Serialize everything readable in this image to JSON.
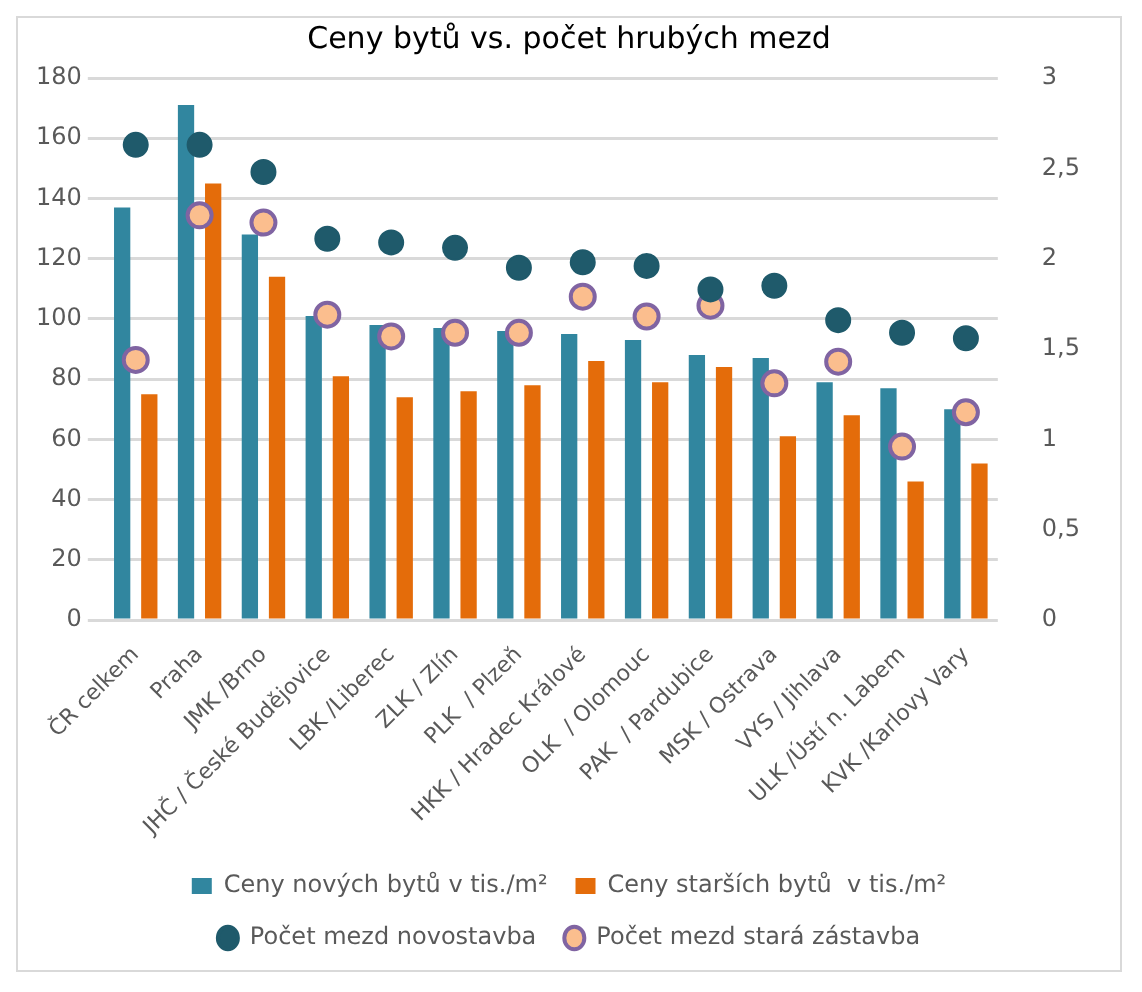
{
  "chart_data": {
    "type": "bar",
    "title": "Ceny bytů vs. počet hrubých mezd",
    "categories": [
      "ČR celkem",
      "Praha",
      "JMK /Brno",
      "JHČ / České Budějovice",
      "LBK /Liberec",
      "ZLK / Zlín",
      "PLK  / Plzeň",
      "HKK / Hradec Králové",
      "OLK  / Olomouc",
      "PAK  / Pardubice",
      "MSK / Ostrava",
      "VYS / Jihlava",
      "ULK /Ústí n. Labem",
      "KVK /Karlovy Vary"
    ],
    "series": [
      {
        "name": "Ceny nových bytů v tis./m²",
        "color": "#31869f",
        "values": [
          137,
          171,
          128,
          101,
          98,
          97,
          96,
          95,
          93,
          88,
          87,
          79,
          77,
          70
        ]
      },
      {
        "name": "Ceny starších bytů  v tis./m²",
        "color": "#e46c0a",
        "values": [
          75,
          145,
          114,
          81,
          74,
          76,
          78,
          86,
          79,
          84,
          61,
          68,
          46,
          52
        ]
      },
      {
        "name": "Počet mezd novostavba",
        "type": "scatter",
        "axis": "y2",
        "color": "#1f5a6b",
        "values": [
          2.63,
          2.63,
          2.48,
          2.11,
          2.09,
          2.06,
          1.95,
          1.98,
          1.96,
          1.83,
          1.85,
          1.66,
          1.59,
          1.56
        ]
      },
      {
        "name": "Počet mezd stará zástavba",
        "type": "scatter",
        "axis": "y2",
        "color": "#fbbe8e",
        "values": [
          1.44,
          2.24,
          2.2,
          1.69,
          1.57,
          1.59,
          1.59,
          1.79,
          1.68,
          1.74,
          1.31,
          1.43,
          0.96,
          1.15
        ]
      }
    ],
    "ylim": [
      0,
      180
    ],
    "yticks": [
      0,
      20,
      40,
      60,
      80,
      100,
      120,
      140,
      160,
      180
    ],
    "y2lim": [
      0,
      3
    ],
    "y2ticks": [
      0,
      {
        "value": 0.5,
        "label": "0,5"
      },
      1,
      {
        "value": 1.5,
        "label": "1,5"
      },
      2,
      {
        "value": 2.5,
        "label": "2,5"
      },
      3
    ],
    "grid": "y",
    "legend": "bottom",
    "marker": "circle"
  }
}
